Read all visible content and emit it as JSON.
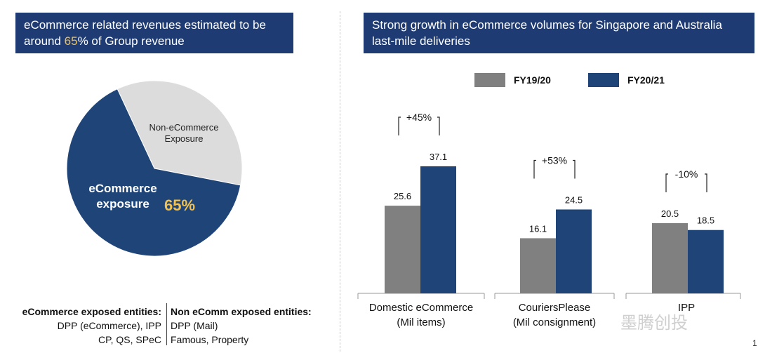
{
  "left_banner": {
    "line1": "eCommerce related revenues estimated to be",
    "line2_a": "around ",
    "line2_pct": "65",
    "line2_b": "% of Group revenue"
  },
  "right_banner": {
    "line1": "Strong growth in eCommerce volumes for Singapore and Australia",
    "line2": "last-mile deliveries"
  },
  "pie": {
    "nonecomm_line1": "Non-eCommerce",
    "nonecomm_line2": "Exposure",
    "ecomm_line1": "eCommerce",
    "ecomm_line2": "exposure",
    "ecomm_pct": "65%"
  },
  "entities": {
    "left_head": "eCommerce exposed entities:",
    "left_line1": "DPP (eCommerce), IPP",
    "left_line2": "CP, QS, SPeC",
    "right_head": "Non eComm exposed entities:",
    "right_line1": "DPP (Mail)",
    "right_line2": "Famous, Property"
  },
  "legend": {
    "fy1920": "FY19/20",
    "fy2021": "FY20/21"
  },
  "chart_data": [
    {
      "type": "pie",
      "title": "",
      "slices": [
        {
          "label": "eCommerce exposure",
          "value": 65,
          "color": "#1f4578"
        },
        {
          "label": "Non-eCommerce Exposure",
          "value": 35,
          "color": "#dcdcdc"
        }
      ]
    },
    {
      "type": "bar",
      "title": "",
      "categories": [
        "Domestic eCommerce",
        "CouriersPlease",
        "IPP"
      ],
      "category_units": [
        "(Mil items)",
        "(Mil consignment)",
        ""
      ],
      "series": [
        {
          "name": "FY19/20",
          "values": [
            25.6,
            16.1,
            20.5
          ],
          "color": "#808080"
        },
        {
          "name": "FY20/21",
          "values": [
            37.1,
            24.5,
            18.5
          ],
          "color": "#1f4578"
        }
      ],
      "growth_labels": [
        "+45%",
        "+53%",
        "-10%"
      ],
      "ylim": [
        0,
        45
      ],
      "legend_position": "top",
      "grid": false
    }
  ],
  "watermark": "墨腾创投",
  "page_number": "1"
}
